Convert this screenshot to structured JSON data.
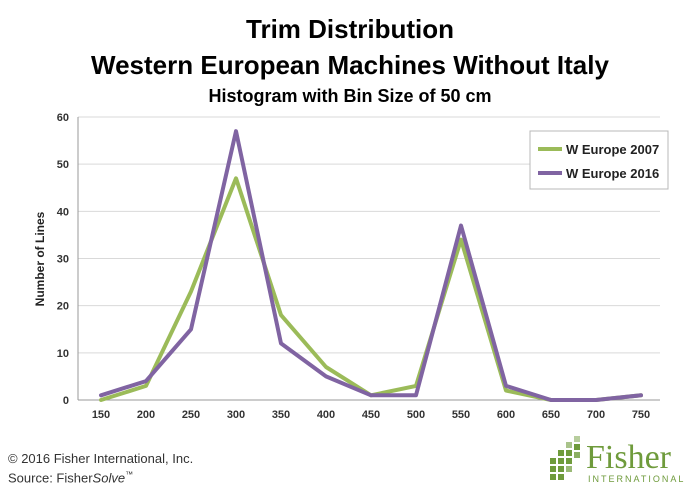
{
  "chart_data": {
    "type": "line",
    "title": "Trim Distribution",
    "title_line2": "Western European Machines Without Italy",
    "subtitle": "Histogram with Bin Size of 50 cm",
    "ylabel": "Number of Lines",
    "xlabel": "",
    "x": [
      150,
      200,
      250,
      300,
      350,
      400,
      450,
      500,
      550,
      600,
      650,
      700,
      750
    ],
    "ylim": [
      0,
      60
    ],
    "yticks": [
      0,
      10,
      20,
      30,
      40,
      50,
      60
    ],
    "grid": "horizontal",
    "legend_position": "top-right",
    "series": [
      {
        "name": "W Europe 2007",
        "color": "#9bbb59",
        "values": [
          0,
          3,
          23,
          47,
          18,
          7,
          1,
          3,
          34,
          2,
          0,
          0,
          1
        ]
      },
      {
        "name": "W Europe 2016",
        "color": "#8064a2",
        "values": [
          1,
          4,
          15,
          57,
          12,
          5,
          1,
          1,
          37,
          3,
          0,
          0,
          1
        ]
      }
    ]
  },
  "footer": {
    "copyright": "© 2016 Fisher International, Inc.",
    "source_prefix": "Source: Fisher",
    "source_italic": "Solve",
    "source_tm": "™"
  },
  "logo": {
    "name": "Fisher",
    "tagline": "INTERNATIONAL",
    "color": "#6f9b3c"
  }
}
